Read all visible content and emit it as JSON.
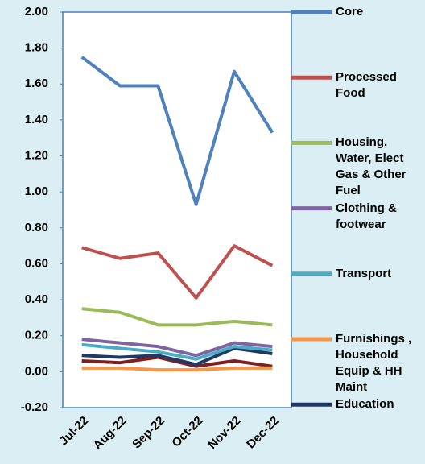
{
  "chart_data": {
    "type": "line",
    "categories": [
      "Jul-22",
      "Aug-22",
      "Sep-22",
      "Oct-22",
      "Nov-22",
      "Dec-22"
    ],
    "series": [
      {
        "name": "Core",
        "color": "#4f81bd",
        "values": [
          1.75,
          1.59,
          1.59,
          0.93,
          1.67,
          1.33
        ]
      },
      {
        "name": "Processed Food",
        "color": "#c0504d",
        "values": [
          0.69,
          0.63,
          0.66,
          0.41,
          0.7,
          0.59
        ]
      },
      {
        "name": "Housing, Water, Elect Gas & Other Fuel",
        "color": "#9bbb59",
        "values": [
          0.35,
          0.33,
          0.26,
          0.26,
          0.28,
          0.26
        ]
      },
      {
        "name": "Clothing & footwear",
        "color": "#8064a2",
        "values": [
          0.18,
          0.16,
          0.14,
          0.09,
          0.16,
          0.14
        ]
      },
      {
        "name": "Transport",
        "color": "#4bacc6",
        "values": [
          0.15,
          0.13,
          0.11,
          0.07,
          0.14,
          0.12
        ]
      },
      {
        "name": "Furnishings , Household Equip & HH Maint",
        "color": "#f79646",
        "values": [
          0.02,
          0.02,
          0.01,
          0.01,
          0.02,
          0.02
        ]
      },
      {
        "name": "Education",
        "color": "#1f3864",
        "values": [
          0.09,
          0.08,
          0.09,
          0.04,
          0.13,
          0.1
        ]
      },
      {
        "color": "#7f1f1f",
        "values": [
          0.06,
          0.05,
          0.08,
          0.03,
          0.06,
          0.03
        ]
      }
    ],
    "ylim": [
      -0.2,
      2.0
    ],
    "yticks": [
      {
        "value": -0.2,
        "label": "-0.20"
      },
      {
        "value": 0,
        "label": "0.00"
      },
      {
        "value": 0.2,
        "label": "0.20"
      },
      {
        "value": 0.4,
        "label": "0.40"
      },
      {
        "value": 0.6,
        "label": "0.60"
      },
      {
        "value": 0.8,
        "label": "0.80"
      },
      {
        "value": 1.0,
        "label": "1.00"
      },
      {
        "value": 1.2,
        "label": "1.20"
      },
      {
        "value": 1.4,
        "label": "1.40"
      },
      {
        "value": 1.6,
        "label": "1.60"
      },
      {
        "value": 1.8,
        "label": "1.80"
      },
      {
        "value": 2.0,
        "label": "2.00"
      }
    ],
    "grid": false
  }
}
